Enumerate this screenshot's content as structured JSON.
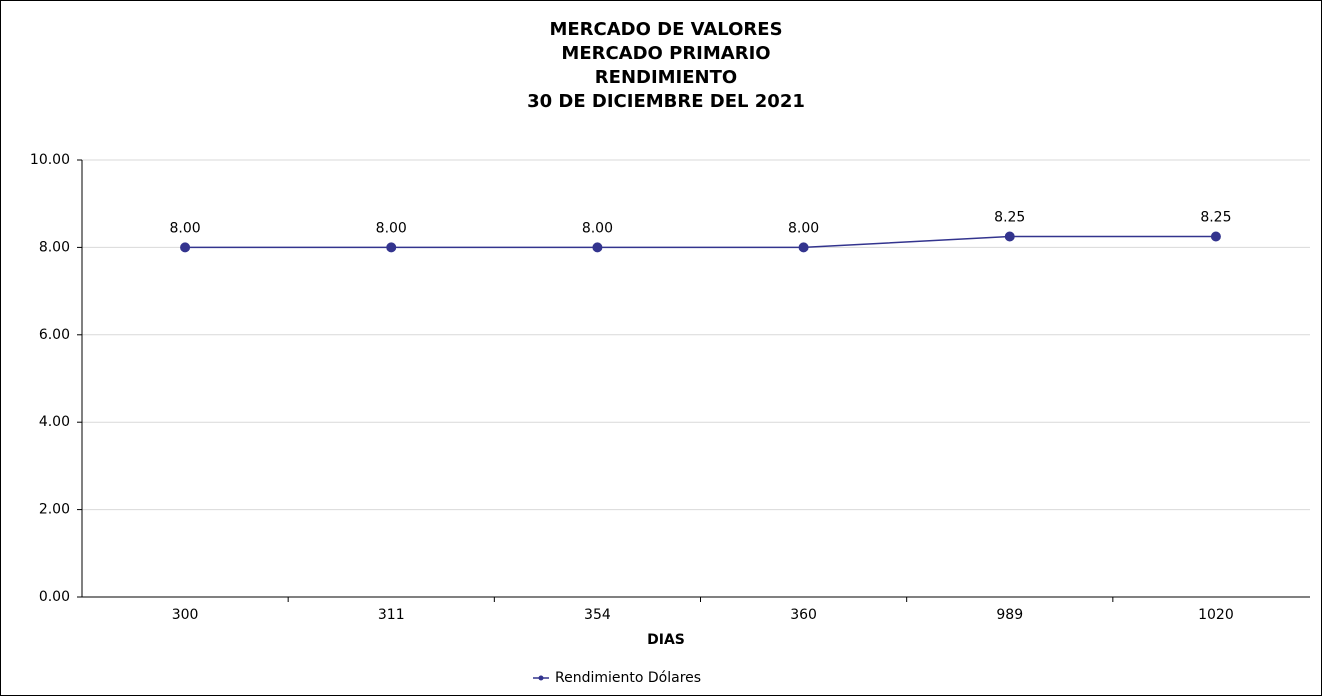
{
  "chart_data": {
    "type": "line",
    "title": [
      "MERCADO DE VALORES",
      "MERCADO PRIMARIO",
      "RENDIMIENTO",
      "30 DE DICIEMBRE DEL 2021"
    ],
    "x_label": "DIAS",
    "categories": [
      "300",
      "311",
      "354",
      "360",
      "989",
      "1020"
    ],
    "series": [
      {
        "name": "Rendimiento Dólares",
        "color": "#33348e",
        "values": [
          8.0,
          8.0,
          8.0,
          8.0,
          8.25,
          8.25
        ],
        "value_labels": [
          "8.00",
          "8.00",
          "8.00",
          "8.00",
          "8.25",
          "8.25"
        ]
      }
    ],
    "ylim": [
      0,
      10
    ],
    "yticks": [
      {
        "value": 0,
        "label": "0.00"
      },
      {
        "value": 2,
        "label": "2.00"
      },
      {
        "value": 4,
        "label": "4.00"
      },
      {
        "value": 6,
        "label": "6.00"
      },
      {
        "value": 8,
        "label": "8.00"
      },
      {
        "value": 10,
        "label": "10.00"
      }
    ],
    "grid": true,
    "legend": "bottom"
  }
}
